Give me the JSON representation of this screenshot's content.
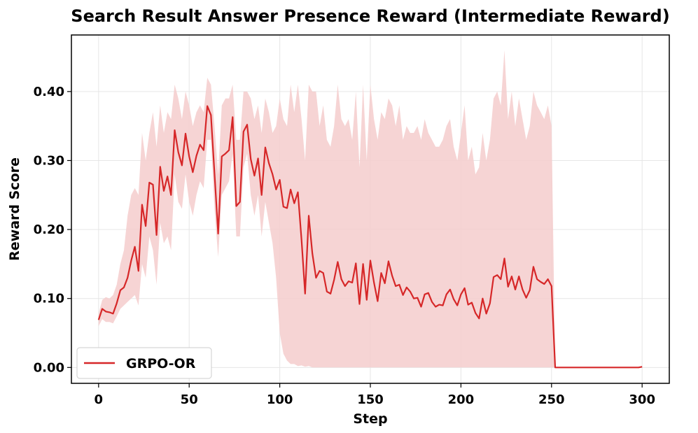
{
  "chart_data": {
    "type": "line",
    "title": "Search Result Answer Presence Reward (Intermediate Reward)",
    "xlabel": "Step",
    "ylabel": "Reward Score",
    "xlim": [
      -15,
      315
    ],
    "ylim": [
      -0.023,
      0.482
    ],
    "xticks": [
      0,
      50,
      100,
      150,
      200,
      250,
      300
    ],
    "yticks": [
      0.0,
      0.1,
      0.2,
      0.3,
      0.4
    ],
    "xtick_labels": [
      "0",
      "50",
      "100",
      "150",
      "200",
      "250",
      "300"
    ],
    "ytick_labels": [
      "0.00",
      "0.10",
      "0.20",
      "0.30",
      "0.40"
    ],
    "grid": true,
    "legend_position": "lower-left",
    "series": [
      {
        "name": "GRPO-OR",
        "color": "#d62728",
        "band_color": "#f5cccc",
        "x": [
          0,
          2,
          4,
          6,
          8,
          10,
          12,
          14,
          16,
          18,
          20,
          22,
          24,
          26,
          28,
          30,
          32,
          34,
          36,
          38,
          40,
          42,
          44,
          46,
          48,
          50,
          52,
          54,
          56,
          58,
          60,
          62,
          64,
          66,
          68,
          70,
          72,
          74,
          76,
          78,
          80,
          82,
          84,
          86,
          88,
          90,
          92,
          94,
          96,
          98,
          100,
          102,
          104,
          106,
          108,
          110,
          112,
          114,
          116,
          118,
          120,
          122,
          124,
          126,
          128,
          130,
          132,
          134,
          136,
          138,
          140,
          142,
          144,
          146,
          148,
          150,
          152,
          154,
          156,
          158,
          160,
          162,
          164,
          166,
          168,
          170,
          172,
          174,
          176,
          178,
          180,
          182,
          184,
          186,
          188,
          190,
          192,
          194,
          196,
          198,
          200,
          202,
          204,
          206,
          208,
          210,
          212,
          214,
          216,
          218,
          220,
          222,
          224,
          226,
          228,
          230,
          232,
          234,
          236,
          238,
          240,
          242,
          244,
          246,
          248,
          250,
          252,
          254,
          260,
          270,
          280,
          290,
          298,
          300
        ],
        "y": [
          0.069,
          0.085,
          0.081,
          0.08,
          0.078,
          0.093,
          0.112,
          0.116,
          0.13,
          0.155,
          0.175,
          0.14,
          0.236,
          0.205,
          0.268,
          0.265,
          0.192,
          0.291,
          0.256,
          0.277,
          0.25,
          0.344,
          0.312,
          0.293,
          0.339,
          0.306,
          0.283,
          0.307,
          0.323,
          0.315,
          0.379,
          0.366,
          0.281,
          0.194,
          0.306,
          0.31,
          0.315,
          0.363,
          0.234,
          0.24,
          0.342,
          0.352,
          0.302,
          0.278,
          0.303,
          0.25,
          0.319,
          0.296,
          0.28,
          0.258,
          0.272,
          0.233,
          0.231,
          0.258,
          0.238,
          0.254,
          0.185,
          0.107,
          0.22,
          0.165,
          0.13,
          0.14,
          0.137,
          0.11,
          0.107,
          0.127,
          0.153,
          0.128,
          0.118,
          0.125,
          0.123,
          0.151,
          0.092,
          0.15,
          0.098,
          0.155,
          0.123,
          0.096,
          0.137,
          0.122,
          0.154,
          0.133,
          0.118,
          0.12,
          0.105,
          0.116,
          0.11,
          0.1,
          0.101,
          0.088,
          0.106,
          0.108,
          0.095,
          0.088,
          0.091,
          0.09,
          0.106,
          0.113,
          0.099,
          0.09,
          0.106,
          0.115,
          0.091,
          0.094,
          0.079,
          0.071,
          0.1,
          0.078,
          0.093,
          0.131,
          0.134,
          0.128,
          0.158,
          0.117,
          0.132,
          0.113,
          0.132,
          0.113,
          0.101,
          0.112,
          0.146,
          0.128,
          0.124,
          0.121,
          0.128,
          0.118,
          0.0,
          0.0,
          0.0,
          0.0,
          0.0,
          0.0,
          0.0,
          0.001
        ],
        "upper": [
          0.078,
          0.098,
          0.102,
          0.1,
          0.105,
          0.12,
          0.15,
          0.17,
          0.22,
          0.25,
          0.26,
          0.25,
          0.34,
          0.3,
          0.34,
          0.37,
          0.32,
          0.38,
          0.34,
          0.37,
          0.36,
          0.41,
          0.39,
          0.36,
          0.4,
          0.38,
          0.35,
          0.37,
          0.38,
          0.37,
          0.42,
          0.41,
          0.35,
          0.28,
          0.38,
          0.39,
          0.39,
          0.41,
          0.33,
          0.33,
          0.4,
          0.4,
          0.39,
          0.36,
          0.38,
          0.34,
          0.39,
          0.37,
          0.34,
          0.35,
          0.39,
          0.36,
          0.35,
          0.41,
          0.37,
          0.41,
          0.36,
          0.3,
          0.41,
          0.4,
          0.4,
          0.35,
          0.38,
          0.33,
          0.32,
          0.35,
          0.41,
          0.36,
          0.35,
          0.36,
          0.33,
          0.4,
          0.29,
          0.41,
          0.3,
          0.41,
          0.36,
          0.33,
          0.37,
          0.36,
          0.39,
          0.38,
          0.35,
          0.38,
          0.33,
          0.35,
          0.34,
          0.34,
          0.35,
          0.33,
          0.36,
          0.34,
          0.33,
          0.32,
          0.32,
          0.33,
          0.35,
          0.36,
          0.32,
          0.3,
          0.34,
          0.38,
          0.3,
          0.32,
          0.28,
          0.29,
          0.34,
          0.3,
          0.33,
          0.39,
          0.4,
          0.38,
          0.46,
          0.36,
          0.4,
          0.35,
          0.39,
          0.36,
          0.33,
          0.35,
          0.4,
          0.38,
          0.37,
          0.36,
          0.38,
          0.35,
          0.0,
          0.0,
          0.0,
          0.0,
          0.0,
          0.0,
          0.0,
          0.001
        ],
        "lower": [
          0.06,
          0.07,
          0.066,
          0.066,
          0.064,
          0.074,
          0.085,
          0.09,
          0.095,
          0.1,
          0.105,
          0.09,
          0.15,
          0.13,
          0.19,
          0.17,
          0.12,
          0.21,
          0.18,
          0.19,
          0.17,
          0.28,
          0.24,
          0.23,
          0.28,
          0.24,
          0.22,
          0.25,
          0.27,
          0.26,
          0.33,
          0.33,
          0.23,
          0.16,
          0.25,
          0.26,
          0.27,
          0.31,
          0.19,
          0.19,
          0.29,
          0.31,
          0.25,
          0.22,
          0.25,
          0.19,
          0.24,
          0.21,
          0.18,
          0.13,
          0.05,
          0.02,
          0.01,
          0.005,
          0.005,
          0.002,
          0.003,
          0.001,
          0.002,
          0.0,
          0.0,
          0.0,
          0.0,
          0.0,
          0.0,
          0.0,
          0.0,
          0.0,
          0.0,
          0.0,
          0.0,
          0.0,
          0.0,
          0.0,
          0.0,
          0.0,
          0.0,
          0.0,
          0.0,
          0.0,
          0.0,
          0.0,
          0.0,
          0.0,
          0.0,
          0.0,
          0.0,
          0.0,
          0.0,
          0.0,
          0.0,
          0.0,
          0.0,
          0.0,
          0.0,
          0.0,
          0.0,
          0.0,
          0.0,
          0.0,
          0.0,
          0.0,
          0.0,
          0.0,
          0.0,
          0.0,
          0.0,
          0.0,
          0.0,
          0.0,
          0.0,
          0.0,
          0.0,
          0.0,
          0.0,
          0.0,
          0.0,
          0.0,
          0.0,
          0.0,
          0.0,
          0.0,
          0.0,
          0.0,
          0.0,
          0.0,
          0.0,
          0.0,
          0.0,
          0.0,
          0.0,
          0.0,
          0.0,
          0.001
        ]
      }
    ]
  }
}
